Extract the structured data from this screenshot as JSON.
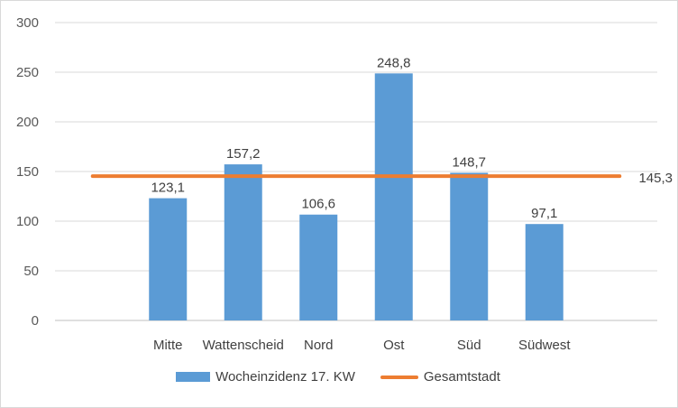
{
  "chart_data": {
    "type": "bar",
    "categories": [
      "Mitte",
      "Wattenscheid",
      "Nord",
      "Ost",
      "Süd",
      "Südwest"
    ],
    "series": [
      {
        "name": "Wocheinzidenz 17. KW",
        "type": "bar",
        "values": [
          123.1,
          157.2,
          106.6,
          248.8,
          148.7,
          97.1
        ],
        "value_labels": [
          "123,1",
          "157,2",
          "106,6",
          "248,8",
          "148,7",
          "97,1"
        ],
        "color": "#5b9bd5"
      },
      {
        "name": "Gesamtstadt",
        "type": "line",
        "value": 145.3,
        "value_label": "145,3",
        "color": "#ed7d31"
      }
    ],
    "yticks": [
      "0",
      "50",
      "100",
      "150",
      "200",
      "250",
      "300"
    ],
    "ylim": [
      0,
      300
    ],
    "grid": true,
    "legend_position": "bottom"
  },
  "legend": {
    "bar_label": "Wocheinzidenz 17. KW",
    "line_label": "Gesamtstadt"
  }
}
